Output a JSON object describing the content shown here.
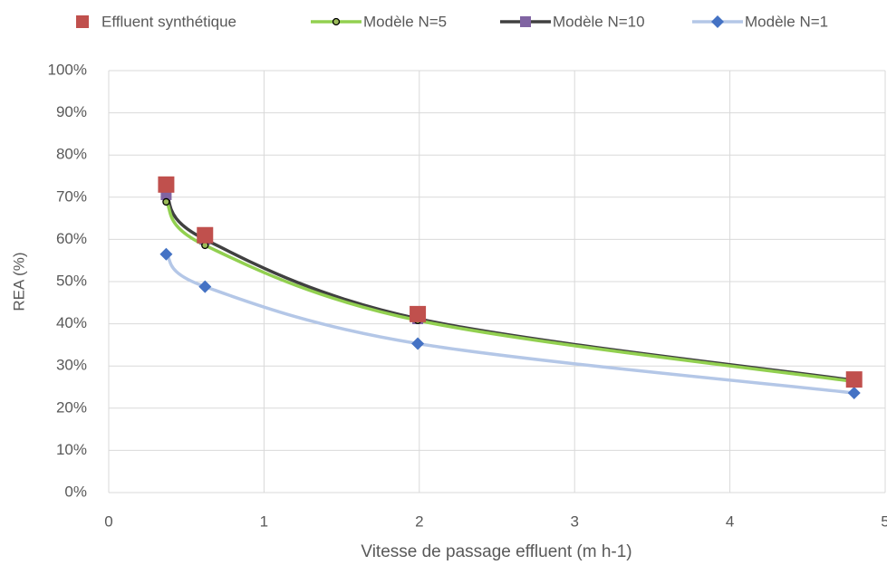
{
  "chart_data": {
    "type": "scatter",
    "xlabel": "Vitesse de passage effluent (m h-1)",
    "ylabel": "REA (%)",
    "xlim": [
      0,
      5
    ],
    "xticks": [
      0,
      1,
      2,
      3,
      4,
      5
    ],
    "ylim": [
      0,
      100
    ],
    "yticks": [
      {
        "value": 0,
        "label": "0%"
      },
      {
        "value": 10,
        "label": "10%"
      },
      {
        "value": 20,
        "label": "20%"
      },
      {
        "value": 30,
        "label": "30%"
      },
      {
        "value": 40,
        "label": "40%"
      },
      {
        "value": 50,
        "label": "50%"
      },
      {
        "value": 60,
        "label": "60%"
      },
      {
        "value": 70,
        "label": "70%"
      },
      {
        "value": 80,
        "label": "80%"
      },
      {
        "value": 90,
        "label": "90%"
      },
      {
        "value": 100,
        "label": "100%"
      }
    ],
    "grid": true,
    "legend": "top",
    "series": [
      {
        "name": "Effluent synthétique",
        "color": "#c0504d",
        "line_color": null,
        "marker": "square",
        "x": [
          0.37,
          0.62,
          1.99,
          4.8
        ],
        "values": [
          73,
          61,
          42.3,
          26.8
        ]
      },
      {
        "name": "Modèle N=5",
        "color": "#9bbb59",
        "line_color": "#92d050",
        "marker": "circle",
        "x": [
          0.37,
          0.62,
          1.99,
          4.8
        ],
        "values": [
          68.9,
          58.6,
          40.8,
          26.3
        ]
      },
      {
        "name": "Modèle N=10",
        "color": "#8064a2",
        "line_color": "#404040",
        "marker": "square",
        "x": [
          0.37,
          0.62,
          1.99,
          4.8
        ],
        "values": [
          70.6,
          60,
          41.2,
          26.6
        ]
      },
      {
        "name": "Modèle N=1",
        "color": "#4472c4",
        "line_color": "#b4c7e7",
        "marker": "diamond",
        "x": [
          0.37,
          0.62,
          1.99,
          4.8
        ],
        "values": [
          56.5,
          48.8,
          35.3,
          23.6
        ]
      }
    ]
  }
}
